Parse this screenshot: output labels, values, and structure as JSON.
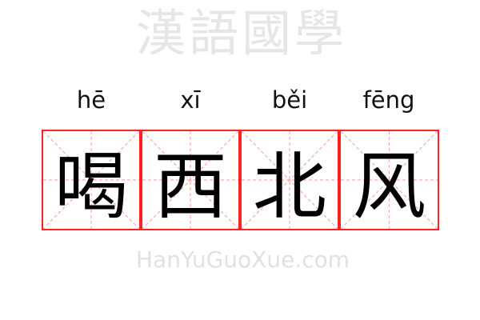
{
  "pinyin": [
    "hē",
    "xī",
    "běi",
    "fēng"
  ],
  "characters": [
    "喝",
    "西",
    "北",
    "风"
  ],
  "watermark": {
    "chinese": "漢語國學",
    "latin": "HanYuGuoXue.com"
  },
  "colors": {
    "border": "#ff2222",
    "guides": "#ffaaaa",
    "text": "#000000"
  }
}
